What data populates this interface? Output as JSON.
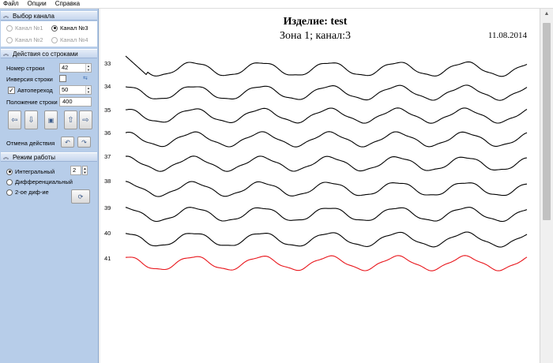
{
  "menu": [
    "Файл",
    "Опции",
    "Справка"
  ],
  "channel_section": {
    "title": "Выбор канала",
    "channels": [
      {
        "label": "Канал №1",
        "enabled": false,
        "selected": false
      },
      {
        "label": "Канал №3",
        "enabled": true,
        "selected": true
      },
      {
        "label": "Канал №2",
        "enabled": false,
        "selected": false
      },
      {
        "label": "Канал №4",
        "enabled": false,
        "selected": false
      }
    ]
  },
  "rows_section": {
    "title": "Действия со строками",
    "row_number_label": "Номер строки",
    "row_number_value": "42",
    "inversion_label": "Инверсия строки",
    "autojump_label": "Автопереход",
    "autojump_value": "50",
    "position_label": "Положение строки",
    "position_value": "400",
    "undo_label": "Отмена действия"
  },
  "mode_section": {
    "title": "Режим работы",
    "modes": [
      {
        "label": "Интегральный",
        "selected": true
      },
      {
        "label": "Дифференциальный",
        "selected": false
      },
      {
        "label": "2-ое диф-ие",
        "selected": false
      }
    ],
    "order_value": "2"
  },
  "plot": {
    "title": "Изделие: test",
    "subtitle": "Зона 1;   канал:3",
    "date": "11.08.2014",
    "rows": [
      "33",
      "34",
      "35",
      "36",
      "37",
      "38",
      "39",
      "40",
      "41"
    ],
    "highlighted_row": "41",
    "trace_color": "#000000",
    "highlight_color": "#e8141a"
  },
  "icons": {
    "left": "arrow-left-icon",
    "down": "arrow-down-icon",
    "center": "center-icon",
    "up": "arrow-up-icon",
    "right": "arrow-right-icon",
    "undo": "undo-icon",
    "redo": "redo-icon",
    "refresh": "refresh-icon"
  }
}
